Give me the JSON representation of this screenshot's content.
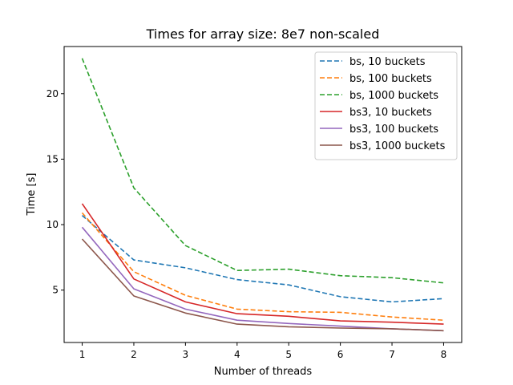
{
  "chart_data": {
    "type": "line",
    "title": "Times for array size: 8e7 non-scaled",
    "xlabel": "Number of threads",
    "ylabel": "Time [s]",
    "x": [
      1,
      2,
      3,
      4,
      5,
      6,
      7,
      8
    ],
    "xticks": [
      "1",
      "2",
      "3",
      "4",
      "5",
      "6",
      "7",
      "8"
    ],
    "yticks": [
      5,
      10,
      15,
      20
    ],
    "xlim": [
      0.65,
      8.35
    ],
    "ylim": [
      1.0,
      23.6
    ],
    "grid": false,
    "legend_position": "top-right",
    "series": [
      {
        "name": "bs, 10 buckets",
        "color": "#1f77b4",
        "dash": "dashed",
        "values": [
          10.7,
          7.3,
          6.7,
          5.8,
          5.4,
          4.5,
          4.1,
          4.35
        ]
      },
      {
        "name": "bs, 100 buckets",
        "color": "#ff7f0e",
        "dash": "dashed",
        "values": [
          10.9,
          6.4,
          4.6,
          3.55,
          3.35,
          3.3,
          2.95,
          2.7
        ]
      },
      {
        "name": "bs, 1000 buckets",
        "color": "#2ca02c",
        "dash": "dashed",
        "values": [
          22.7,
          12.8,
          8.4,
          6.5,
          6.6,
          6.1,
          5.95,
          5.55
        ]
      },
      {
        "name": "bs3, 10 buckets",
        "color": "#d62728",
        "dash": "solid",
        "values": [
          11.6,
          5.85,
          4.1,
          3.2,
          3.0,
          2.65,
          2.55,
          2.4
        ]
      },
      {
        "name": "bs3, 100 buckets",
        "color": "#9467bd",
        "dash": "solid",
        "values": [
          9.8,
          5.1,
          3.55,
          2.7,
          2.45,
          2.25,
          2.05,
          1.9
        ]
      },
      {
        "name": "bs3, 1000 buckets",
        "color": "#8c564b",
        "dash": "solid",
        "values": [
          8.9,
          4.55,
          3.25,
          2.4,
          2.2,
          2.1,
          2.05,
          1.9
        ]
      }
    ]
  }
}
